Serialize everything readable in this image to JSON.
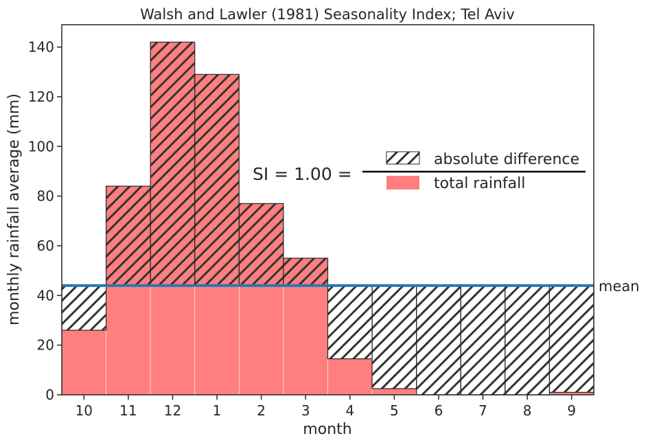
{
  "chart_data": {
    "type": "bar",
    "title": "Walsh and Lawler (1981) Seasonality Index; Tel Aviv",
    "xlabel": "month",
    "ylabel": "monthly rainfall average (mm)",
    "categories": [
      "10",
      "11",
      "12",
      "1",
      "2",
      "3",
      "4",
      "5",
      "6",
      "7",
      "8",
      "9"
    ],
    "series": [
      {
        "name": "total rainfall",
        "values": [
          26,
          84,
          142,
          129,
          77,
          55,
          14.5,
          2.5,
          0,
          0,
          0,
          1
        ],
        "color": "#ff7f7f"
      },
      {
        "name": "absolute difference",
        "values": [
          18,
          40,
          98,
          85,
          33,
          11,
          29.5,
          41.5,
          44,
          44,
          44,
          43
        ],
        "pattern": "diagonal-hatch"
      }
    ],
    "mean": {
      "value": 44,
      "label": "mean",
      "color": "#2878b5"
    },
    "ylim": [
      0,
      149
    ],
    "yticks": [
      0,
      20,
      40,
      60,
      80,
      100,
      120,
      140
    ],
    "grid": false,
    "legend": {
      "placement": "center-right",
      "entries": [
        "absolute difference",
        "total rainfall"
      ]
    },
    "annotation": {
      "prefix": "SI = 1.00 ="
    }
  }
}
